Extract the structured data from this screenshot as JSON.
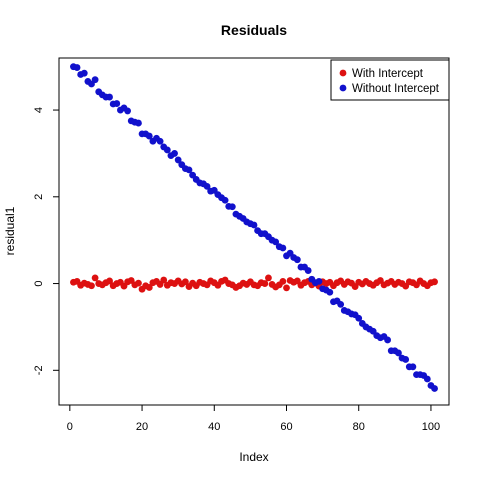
{
  "chart_data": {
    "type": "scatter",
    "title": "Residuals",
    "xlabel": "Index",
    "ylabel": "residual1",
    "xlim": [
      -3,
      105
    ],
    "ylim": [
      -2.8,
      5.2
    ],
    "x_ticks": [
      "0",
      "20",
      "40",
      "60",
      "80",
      "100"
    ],
    "y_ticks": [
      "-2",
      "0",
      "2",
      "4"
    ],
    "grid": false,
    "legend_position": "top-right",
    "series": [
      {
        "name": "With Intercept",
        "color": "#dd1111",
        "x_start": 1,
        "values": [
          0.03,
          0.05,
          -0.04,
          0.01,
          -0.02,
          -0.05,
          0.13,
          0.0,
          -0.03,
          0.02,
          0.06,
          -0.05,
          0.0,
          0.03,
          -0.06,
          0.04,
          0.07,
          -0.03,
          0.01,
          -0.13,
          -0.05,
          -0.09,
          0.02,
          0.05,
          -0.02,
          0.08,
          -0.04,
          0.02,
          0.0,
          0.06,
          -0.01,
          0.04,
          -0.07,
          0.01,
          -0.05,
          0.03,
          0.0,
          -0.03,
          0.06,
          0.02,
          -0.04,
          0.05,
          0.08,
          0.0,
          -0.03,
          -0.09,
          -0.05,
          0.01,
          -0.02,
          0.04,
          -0.03,
          -0.05,
          0.02,
          0.0,
          0.13,
          -0.02,
          -0.08,
          -0.03,
          0.05,
          -0.1,
          0.07,
          0.03,
          0.06,
          -0.04,
          0.02,
          0.05,
          -0.03,
          0.01,
          -0.06,
          0.04,
          0.0,
          0.03,
          -0.05,
          0.02,
          0.06,
          -0.02,
          0.04,
          0.01,
          -0.07,
          0.03,
          -0.01,
          0.05,
          0.0,
          -0.04,
          0.02,
          0.07,
          -0.03,
          0.01,
          0.05,
          -0.02,
          0.03,
          0.0,
          -0.06,
          0.04,
          0.02,
          -0.03,
          0.06,
          0.0,
          -0.05,
          0.02,
          0.04
        ]
      },
      {
        "name": "Without Intercept",
        "color": "#1111cc",
        "x_start": 1,
        "values": [
          5.0,
          4.98,
          4.82,
          4.85,
          4.66,
          4.6,
          4.7,
          4.42,
          4.35,
          4.3,
          4.3,
          4.14,
          4.15,
          4.0,
          4.05,
          3.98,
          3.75,
          3.72,
          3.7,
          3.45,
          3.45,
          3.4,
          3.28,
          3.35,
          3.28,
          3.15,
          3.08,
          2.95,
          3.0,
          2.85,
          2.74,
          2.65,
          2.62,
          2.5,
          2.4,
          2.32,
          2.3,
          2.24,
          2.13,
          2.15,
          2.05,
          1.98,
          1.92,
          1.78,
          1.77,
          1.6,
          1.55,
          1.5,
          1.42,
          1.38,
          1.35,
          1.22,
          1.15,
          1.15,
          1.08,
          1.0,
          0.96,
          0.85,
          0.82,
          0.64,
          0.7,
          0.6,
          0.55,
          0.38,
          0.38,
          0.3,
          0.1,
          0.02,
          0.05,
          -0.12,
          -0.15,
          -0.2,
          -0.42,
          -0.4,
          -0.48,
          -0.62,
          -0.65,
          -0.7,
          -0.72,
          -0.8,
          -0.92,
          -1.0,
          -1.05,
          -1.1,
          -1.2,
          -1.25,
          -1.22,
          -1.3,
          -1.55,
          -1.55,
          -1.6,
          -1.72,
          -1.75,
          -1.92,
          -1.92,
          -2.1,
          -2.1,
          -2.12,
          -2.2,
          -2.35,
          -2.42
        ]
      }
    ]
  }
}
